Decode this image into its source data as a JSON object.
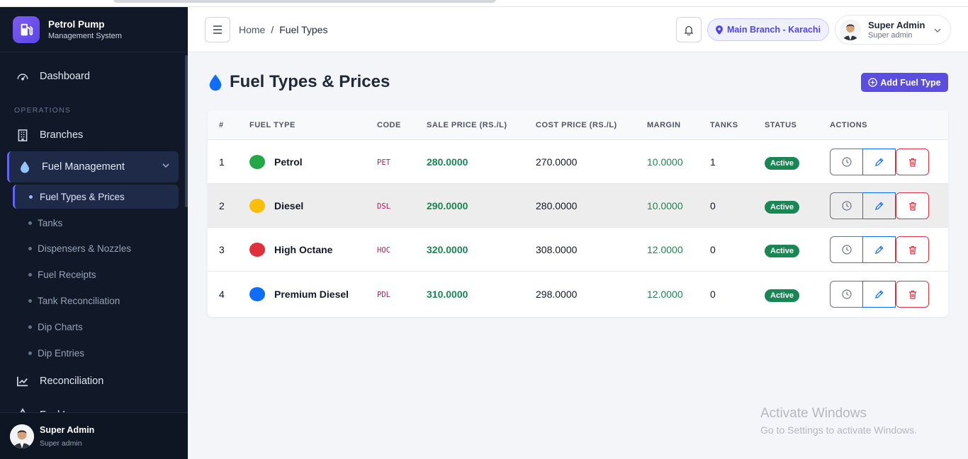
{
  "brand": {
    "title": "Petrol Pump",
    "subtitle": "Management System"
  },
  "sidebar": {
    "dashboard": "Dashboard",
    "section_operations": "OPERATIONS",
    "branches": "Branches",
    "fuel_management": "Fuel Management",
    "sub_items": [
      "Fuel Types & Prices",
      "Tanks",
      "Dispensers & Nozzles",
      "Fuel Receipts",
      "Tank Reconciliation",
      "Dip Charts",
      "Dip Entries"
    ],
    "reconciliation": "Reconciliation",
    "fuel_losses": "Fuel Losses",
    "user": {
      "name": "Super Admin",
      "role": "Super admin"
    }
  },
  "header": {
    "breadcrumb_home": "Home",
    "breadcrumb_sep": "/",
    "breadcrumb_current": "Fuel Types",
    "branch": "Main Branch - Karachi",
    "user": {
      "name": "Super Admin",
      "role": "Super admin"
    }
  },
  "page": {
    "title": "Fuel Types & Prices",
    "add_button": "Add Fuel Type"
  },
  "table": {
    "headers": [
      "#",
      "FUEL TYPE",
      "CODE",
      "SALE PRICE (RS./L)",
      "COST PRICE (RS./L)",
      "MARGIN",
      "TANKS",
      "STATUS",
      "ACTIONS"
    ],
    "rows": [
      {
        "num": "1",
        "name": "Petrol",
        "color": "#22a845",
        "code": "PET",
        "sale": "280.0000",
        "cost": "270.0000",
        "margin": "10.0000",
        "tanks": "1",
        "status": "Active"
      },
      {
        "num": "2",
        "name": "Diesel",
        "color": "#fbbf0a",
        "code": "DSL",
        "sale": "290.0000",
        "cost": "280.0000",
        "margin": "10.0000",
        "tanks": "0",
        "status": "Active"
      },
      {
        "num": "3",
        "name": "High Octane",
        "color": "#e0303e",
        "code": "HOC",
        "sale": "320.0000",
        "cost": "308.0000",
        "margin": "12.0000",
        "tanks": "0",
        "status": "Active"
      },
      {
        "num": "4",
        "name": "Premium Diesel",
        "color": "#0d6efd",
        "code": "PDL",
        "sale": "310.0000",
        "cost": "298.0000",
        "margin": "12.0000",
        "tanks": "0",
        "status": "Active"
      }
    ]
  },
  "watermark": {
    "line1": "Activate Windows",
    "line2": "Go to Settings to activate Windows."
  },
  "colors": {
    "accent": "#5b4de0",
    "success": "#198754",
    "danger": "#dc3545",
    "primary": "#0d6efd",
    "sidebar_bg": "#111827"
  }
}
